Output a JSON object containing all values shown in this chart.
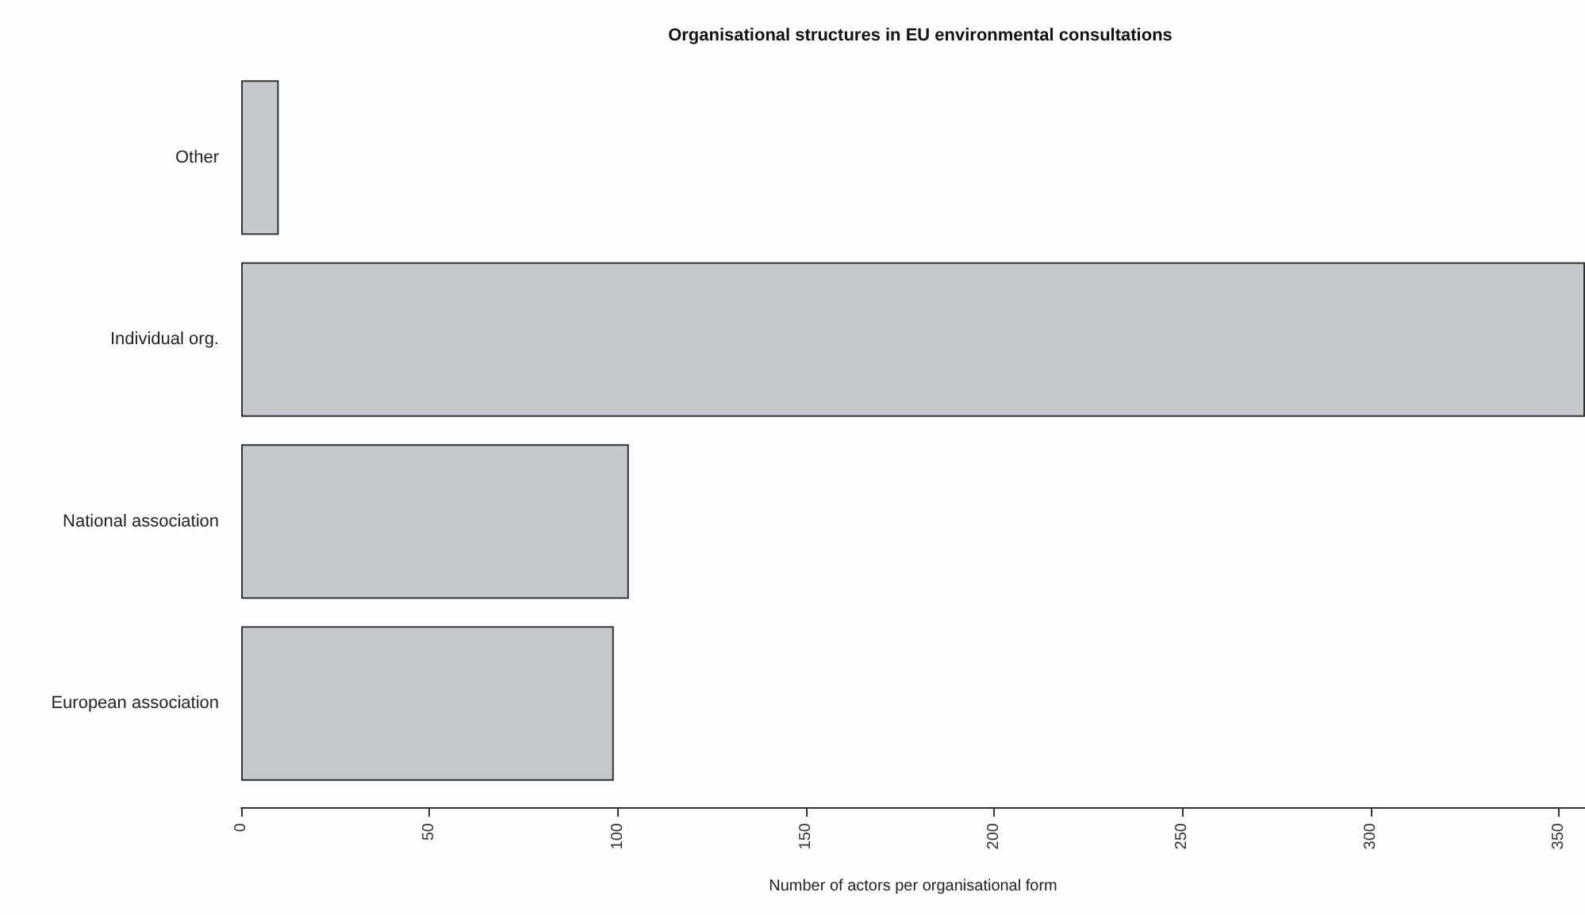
{
  "chart_data": {
    "type": "bar",
    "orientation": "horizontal",
    "title": "Organisational structures in EU environmental consultations",
    "xlabel": "Number of actors per organisational form",
    "categories": [
      "Other",
      "Individual org.",
      "National association",
      "European association"
    ],
    "values": [
      10,
      357,
      103,
      99
    ],
    "color": "#c5c8cc",
    "xlim": [
      0,
      357
    ],
    "xticks": [
      0,
      50,
      100,
      150,
      200,
      250,
      300,
      350
    ],
    "grid": false
  }
}
